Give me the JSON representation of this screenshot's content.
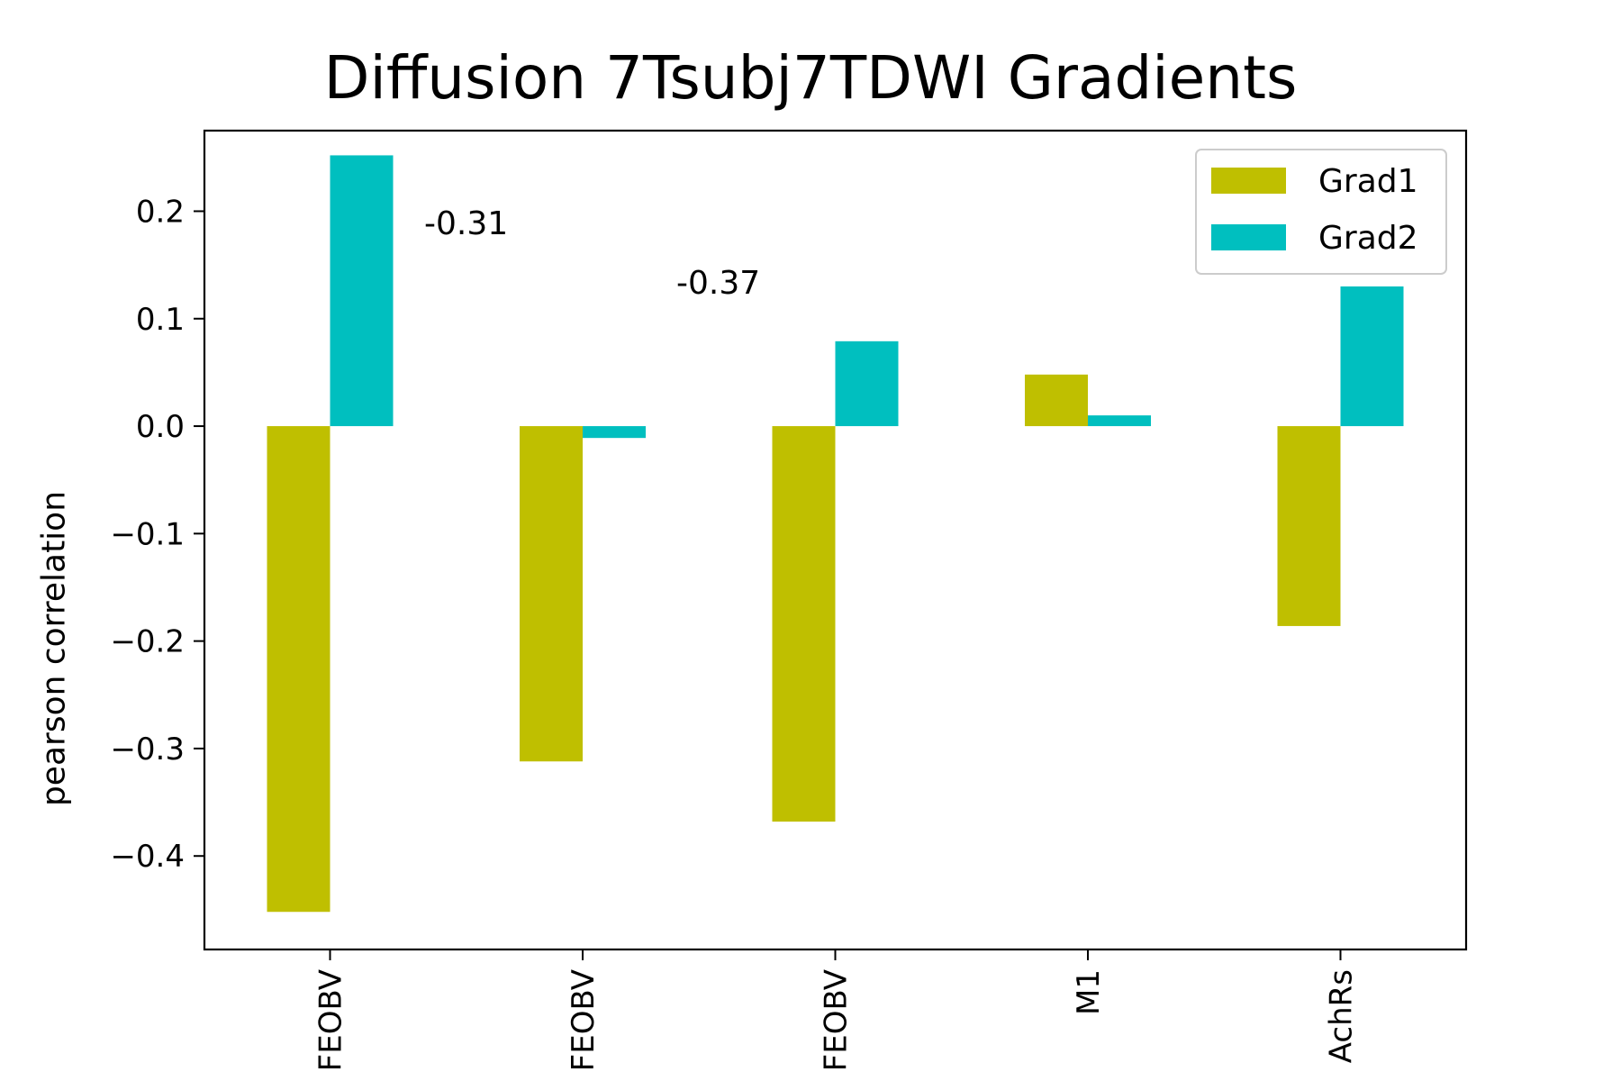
{
  "chart_data": {
    "type": "bar",
    "title": "Diffusion 7Tsubj7TDWI Gradients",
    "xlabel": "",
    "ylabel": "pearson correlation",
    "categories": [
      "FEOBV",
      "FEOBV",
      "FEOBV",
      "M1",
      "AchRs"
    ],
    "series": [
      {
        "name": "Grad1",
        "color": "#bfbf00",
        "values": [
          -0.452,
          -0.312,
          -0.368,
          0.048,
          -0.186
        ]
      },
      {
        "name": "Grad2",
        "color": "#00bfbf",
        "values": [
          0.252,
          -0.011,
          0.079,
          0.01,
          0.13
        ]
      }
    ],
    "annotations": [
      "-0.31",
      "-0.37"
    ],
    "ylim": [
      -0.487,
      0.275
    ],
    "yticks": [
      -0.4,
      -0.3,
      -0.2,
      -0.1,
      0.0,
      0.1,
      0.2
    ],
    "ytick_labels": [
      "−0.4",
      "−0.3",
      "−0.2",
      "−0.1",
      "0.0",
      "0.1",
      "0.2"
    ],
    "grid": false,
    "legend": "top-right"
  }
}
